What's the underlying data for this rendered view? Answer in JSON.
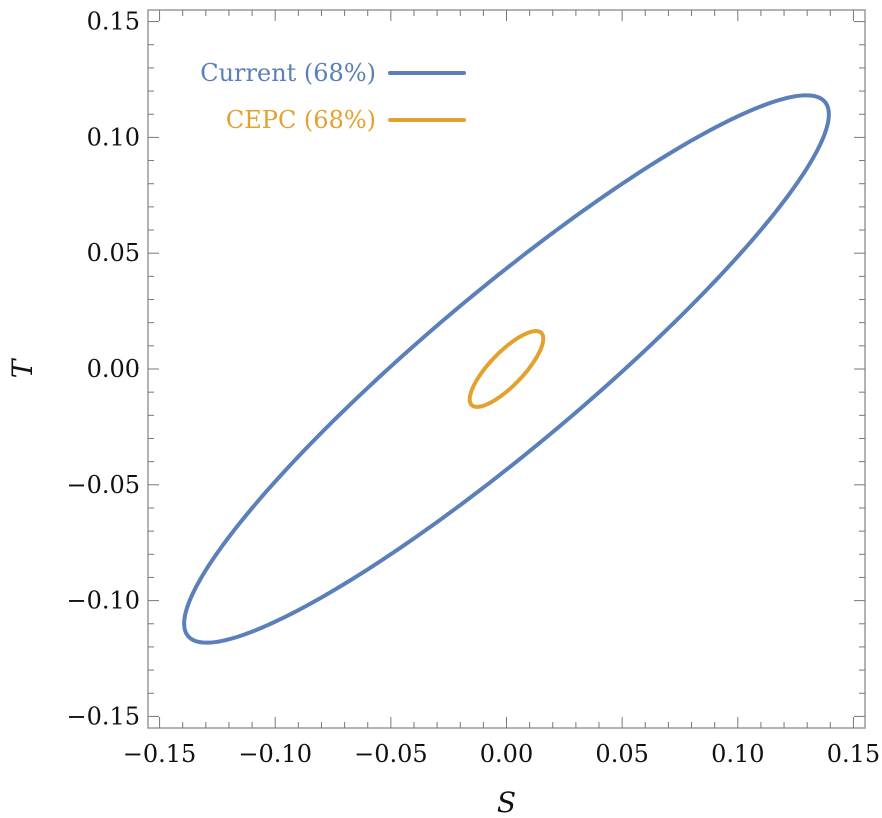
{
  "chart_data": {
    "type": "contour",
    "xlabel": "S",
    "ylabel": "T",
    "xlim": [
      -0.155,
      0.155
    ],
    "ylim": [
      -0.155,
      0.155
    ],
    "xticks": [
      -0.15,
      -0.1,
      -0.05,
      0.0,
      0.05,
      0.1,
      0.15
    ],
    "yticks": [
      -0.15,
      -0.1,
      -0.05,
      0.0,
      0.05,
      0.1,
      0.15
    ],
    "xtick_labels": [
      "−0.15",
      "−0.10",
      "−0.05",
      "0.00",
      "0.05",
      "0.10",
      "0.15"
    ],
    "ytick_labels": [
      "−0.15",
      "−0.10",
      "−0.05",
      "0.00",
      "0.05",
      "0.10",
      "0.15"
    ],
    "grid": false,
    "legend_position": "top-left",
    "series": [
      {
        "name": "Current (68%)",
        "color": "#5b7fb8",
        "shape": "ellipse",
        "center": [
          0.0,
          0.0
        ],
        "sigma_s": 0.092,
        "sigma_t": 0.078,
        "correlation": 0.93,
        "extent_s": [
          -0.132,
          0.132
        ],
        "extent_t": [
          -0.112,
          0.112
        ]
      },
      {
        "name": "CEPC (68%)",
        "color": "#e3a12f",
        "shape": "ellipse",
        "center": [
          0.0,
          0.0
        ],
        "sigma_s": 0.0105,
        "sigma_t": 0.0108,
        "correlation": 0.8,
        "extent_s": [
          -0.015,
          0.015
        ],
        "extent_t": [
          -0.016,
          0.016
        ]
      }
    ]
  }
}
